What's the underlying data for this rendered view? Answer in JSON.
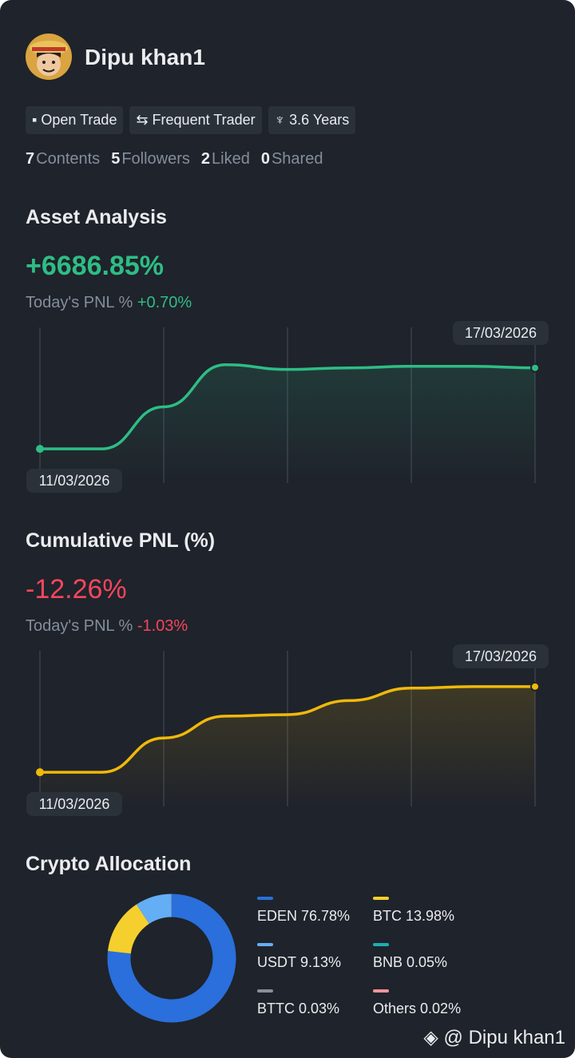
{
  "profile": {
    "name": "Dipu khan1",
    "badges": [
      "Open Trade",
      "Frequent Trader",
      "3.6 Years"
    ],
    "stats": [
      {
        "count": 7,
        "label": "Contents"
      },
      {
        "count": 5,
        "label": "Followers"
      },
      {
        "count": 2,
        "label": "Liked"
      },
      {
        "count": 0,
        "label": "Shared"
      }
    ]
  },
  "asset_analysis": {
    "title": "Asset Analysis",
    "total": "+6686.85%",
    "today_label": "Today's PNL %",
    "today": "+0.70%",
    "chart": {
      "type": "line",
      "start_date": "11/03/2026",
      "end_date": "17/03/2026",
      "ylim": [
        0,
        100
      ],
      "color": "#2ebd85",
      "values": [
        22,
        22,
        49,
        76,
        73,
        74,
        75,
        75,
        74
      ]
    }
  },
  "cumulative_pnl": {
    "title": "Cumulative PNL (%)",
    "total": "-12.26%",
    "today_label": "Today's PNL %",
    "today": "-1.03%",
    "chart": {
      "type": "line",
      "start_date": "11/03/2026",
      "end_date": "17/03/2026",
      "ylim": [
        0,
        100
      ],
      "color": "#f0b90b",
      "values": [
        22,
        22,
        44,
        58,
        59,
        68,
        76,
        77,
        77
      ]
    }
  },
  "crypto_allocation": {
    "title": "Crypto Allocation",
    "chart": {
      "type": "donut",
      "series": [
        {
          "name": "EDEN",
          "value": 76.78,
          "value_label": "76.78%",
          "color": "#2a6fdb"
        },
        {
          "name": "BTC",
          "value": 13.98,
          "value_label": "13.98%",
          "color": "#f5cf2e"
        },
        {
          "name": "USDT",
          "value": 9.13,
          "value_label": "9.13%",
          "color": "#64aef5"
        },
        {
          "name": "BNB",
          "value": 0.05,
          "value_label": "0.05%",
          "color": "#1bb0b0"
        },
        {
          "name": "BTTC",
          "value": 0.03,
          "value_label": "0.03%",
          "color": "#8a8f98"
        },
        {
          "name": "Others",
          "value": 0.02,
          "value_label": "0.02%",
          "color": "#f2939b"
        }
      ]
    }
  },
  "watermark": "@ Dipu khan1"
}
